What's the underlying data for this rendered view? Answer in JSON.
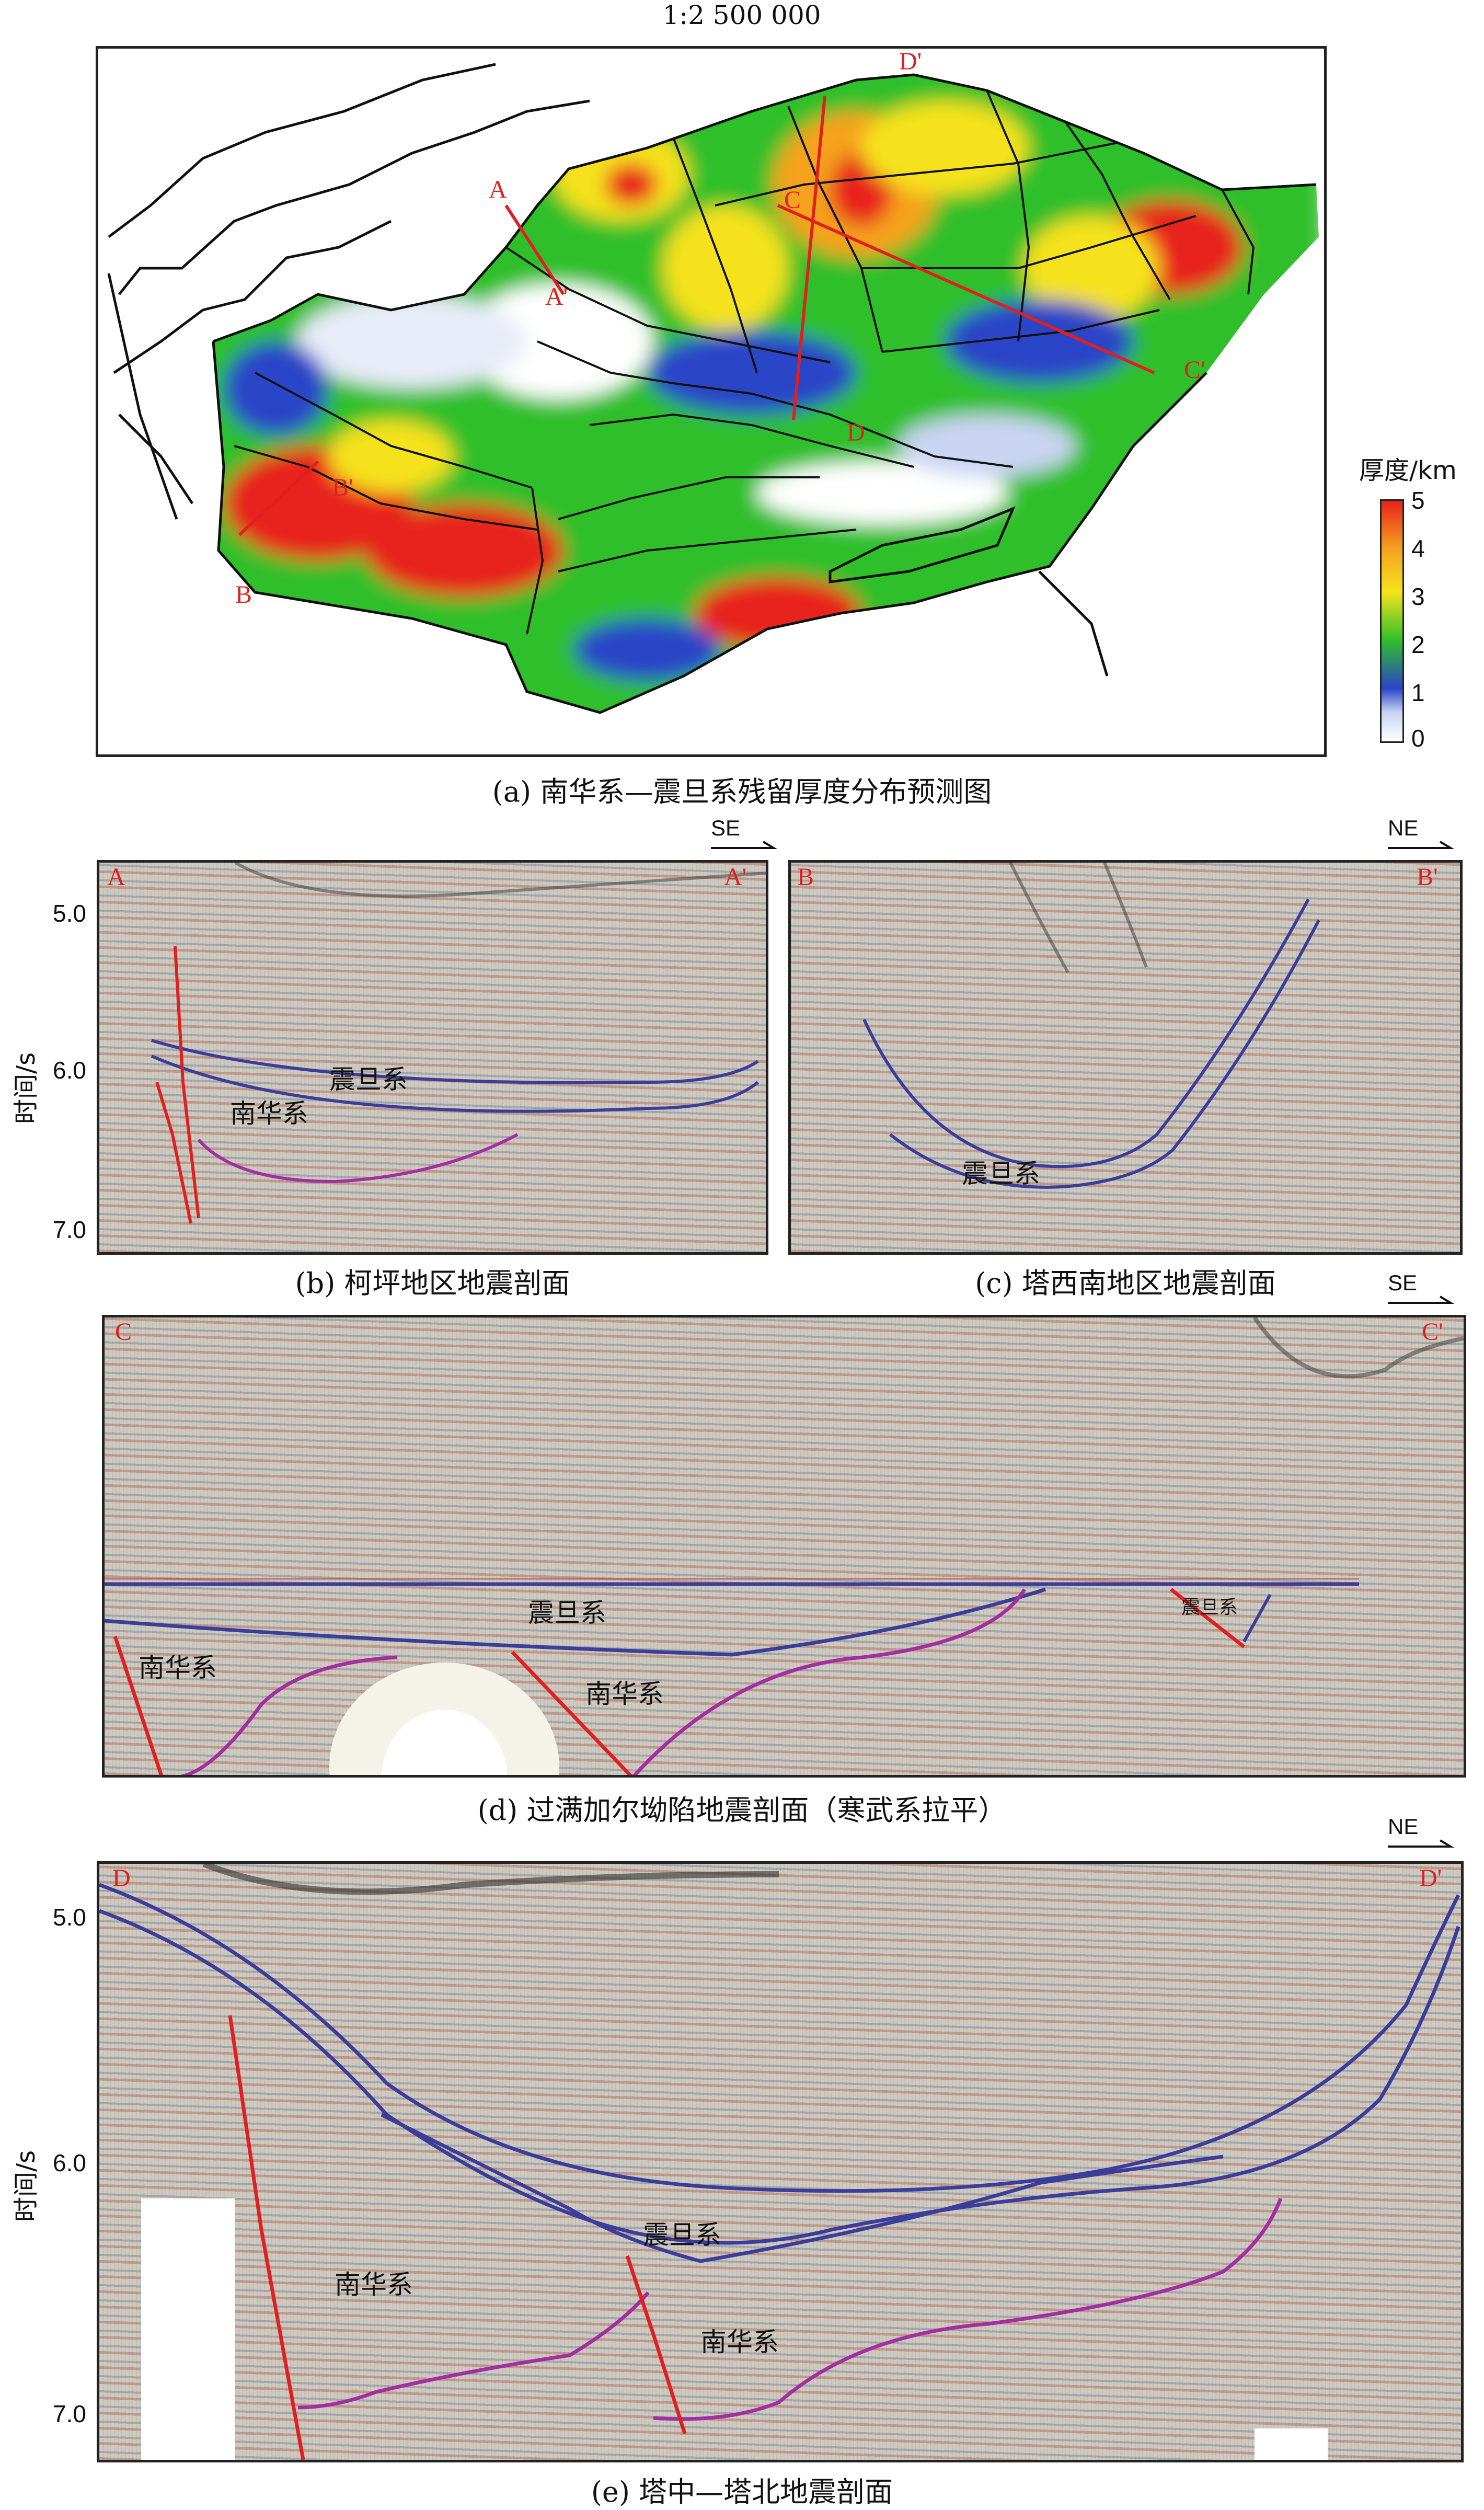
{
  "panel_a": {
    "scale": "1:2 500 000",
    "caption": "(a) 南华系—震旦系残留厚度分布预测图",
    "legend_title": "厚度/km",
    "legend_ticks": [
      "5",
      "4",
      "3",
      "2",
      "1",
      "0"
    ],
    "section_labels": [
      "A",
      "A'",
      "B",
      "B'",
      "C",
      "C'",
      "D",
      "D'"
    ],
    "colors": {
      "red": "#e8231c",
      "orange": "#f5a21e",
      "yellow": "#f5e21c",
      "green": "#2fbf2a",
      "blue": "#2a45c8",
      "lightblue": "#c9d4f2",
      "white": "#ffffff"
    }
  },
  "panel_b": {
    "caption": "(b) 柯坪地区地震剖面",
    "start_label": "A",
    "end_label": "A'",
    "direction": "SE",
    "y_ticks": [
      "5.0",
      "6.0",
      "7.0"
    ],
    "y_label": "时间/s",
    "units": [
      "震旦系",
      "南华系"
    ]
  },
  "panel_c": {
    "caption": "(c) 塔西南地区地震剖面",
    "start_label": "B",
    "end_label": "B'",
    "direction": "NE",
    "units": [
      "震旦系"
    ]
  },
  "panel_d": {
    "caption": "(d) 过满加尔坳陷地震剖面（寒武系拉平）",
    "start_label": "C",
    "end_label": "C'",
    "direction": "SE",
    "units": [
      "震旦系",
      "南华系",
      "南华系",
      "震旦系"
    ]
  },
  "panel_e": {
    "caption": "(e) 塔中—塔北地震剖面",
    "start_label": "D",
    "end_label": "D'",
    "direction": "NE",
    "y_ticks": [
      "5.0",
      "6.0",
      "7.0"
    ],
    "y_label": "时间/s",
    "units": [
      "震旦系",
      "南华系",
      "南华系"
    ]
  }
}
